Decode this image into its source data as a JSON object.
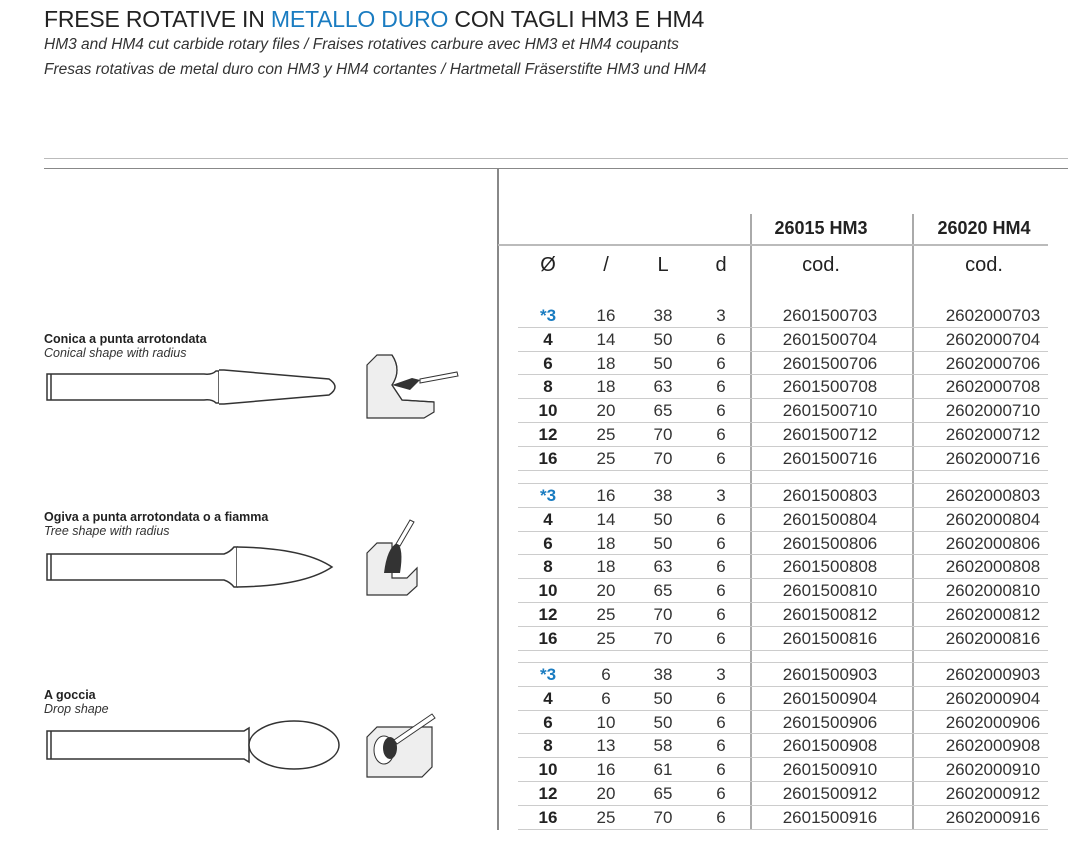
{
  "header": {
    "title_pre": "FRESE ROTATIVE IN ",
    "title_highlight": "METALLO DURO",
    "title_post": " CON TAGLI HM3 E HM4",
    "subtitle_1": "HM3 and HM4 cut carbide rotary files / Fraises rotatives carbure avec HM3 et HM4 coupants",
    "subtitle_2": "Fresas rotativas de metal duro con HM3 y HM4 cortantes / Hartmetall Fräserstifte HM3 und HM4",
    "accent_color": "#1a7cc1"
  },
  "table": {
    "group_headers": [
      "26015 HM3",
      "26020 HM4"
    ],
    "columns": [
      "Ø",
      "/",
      "L",
      "d",
      "cod.",
      "cod."
    ],
    "groups": [
      {
        "name": "Conica a punta arrotondata",
        "name_en": "Conical shape with radius",
        "rows": [
          [
            "*3",
            "16",
            "38",
            "3",
            "2601500703",
            "2602000703"
          ],
          [
            "4",
            "14",
            "50",
            "6",
            "2601500704",
            "2602000704"
          ],
          [
            "6",
            "18",
            "50",
            "6",
            "2601500706",
            "2602000706"
          ],
          [
            "8",
            "18",
            "63",
            "6",
            "2601500708",
            "2602000708"
          ],
          [
            "10",
            "20",
            "65",
            "6",
            "2601500710",
            "2602000710"
          ],
          [
            "12",
            "25",
            "70",
            "6",
            "2601500712",
            "2602000712"
          ],
          [
            "16",
            "25",
            "70",
            "6",
            "2601500716",
            "2602000716"
          ]
        ]
      },
      {
        "name": "Ogiva a punta arrotondata o a fiamma",
        "name_en": "Tree shape with radius",
        "rows": [
          [
            "*3",
            "16",
            "38",
            "3",
            "2601500803",
            "2602000803"
          ],
          [
            "4",
            "14",
            "50",
            "6",
            "2601500804",
            "2602000804"
          ],
          [
            "6",
            "18",
            "50",
            "6",
            "2601500806",
            "2602000806"
          ],
          [
            "8",
            "18",
            "63",
            "6",
            "2601500808",
            "2602000808"
          ],
          [
            "10",
            "20",
            "65",
            "6",
            "2601500810",
            "2602000810"
          ],
          [
            "12",
            "25",
            "70",
            "6",
            "2601500812",
            "2602000812"
          ],
          [
            "16",
            "25",
            "70",
            "6",
            "2601500816",
            "2602000816"
          ]
        ]
      },
      {
        "name": "A goccia",
        "name_en": "Drop shape",
        "rows": [
          [
            "*3",
            "6",
            "38",
            "3",
            "2601500903",
            "2602000903"
          ],
          [
            "4",
            "6",
            "50",
            "6",
            "2601500904",
            "2602000904"
          ],
          [
            "6",
            "10",
            "50",
            "6",
            "2601500906",
            "2602000906"
          ],
          [
            "8",
            "13",
            "58",
            "6",
            "2601500908",
            "2602000908"
          ],
          [
            "10",
            "16",
            "61",
            "6",
            "2601500910",
            "2602000910"
          ],
          [
            "12",
            "20",
            "65",
            "6",
            "2601500912",
            "2602000912"
          ],
          [
            "16",
            "25",
            "70",
            "6",
            "2601500916",
            "2602000916"
          ]
        ]
      }
    ]
  }
}
